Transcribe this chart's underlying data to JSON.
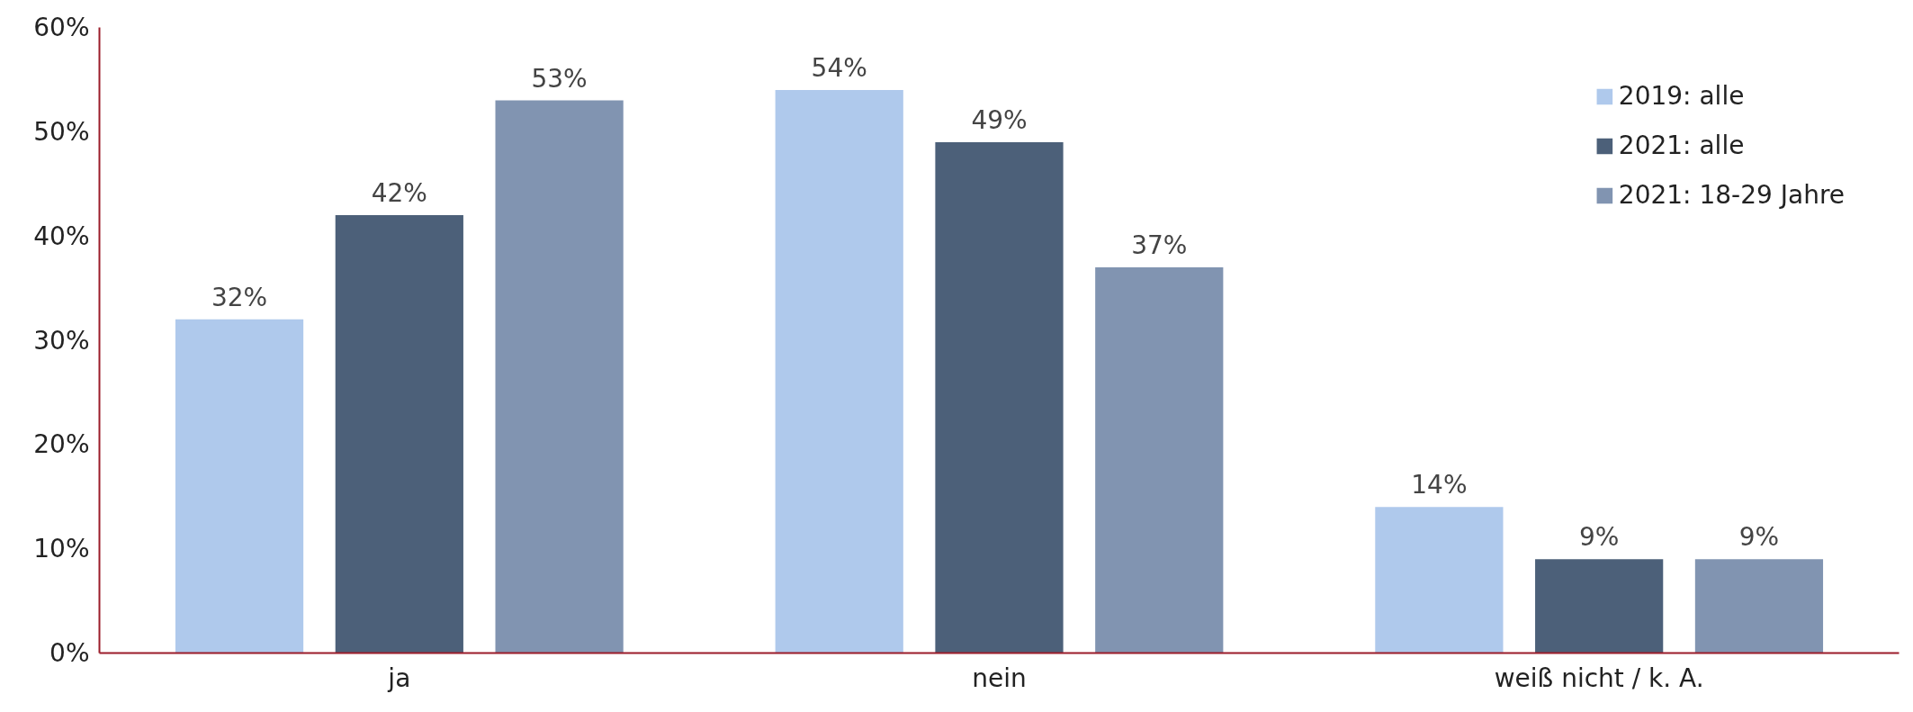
{
  "chart_data": {
    "type": "bar",
    "categories": [
      "ja",
      "nein",
      "weiß nicht / k. A."
    ],
    "series": [
      {
        "name": "2019: alle",
        "color": "#afc9ec",
        "values": [
          32,
          54,
          14
        ],
        "value_labels": [
          "32%",
          "54%",
          "14%"
        ]
      },
      {
        "name": "2021: alle",
        "color": "#4c6079",
        "values": [
          42,
          49,
          9
        ],
        "value_labels": [
          "42%",
          "49%",
          "9%"
        ]
      },
      {
        "name": "2021: 18-29 Jahre",
        "color": "#8194b1",
        "values": [
          53,
          37,
          9
        ],
        "value_labels": [
          "53%",
          "37%",
          "9%"
        ]
      }
    ],
    "ylim": [
      0,
      60
    ],
    "yticks": [
      {
        "value": 0,
        "label": "0%"
      },
      {
        "value": 10,
        "label": "10%"
      },
      {
        "value": 20,
        "label": "20%"
      },
      {
        "value": 30,
        "label": "30%"
      },
      {
        "value": 40,
        "label": "40%"
      },
      {
        "value": 50,
        "label": "50%"
      },
      {
        "value": 60,
        "label": "60%"
      }
    ],
    "grid": false,
    "legend": "top right"
  }
}
